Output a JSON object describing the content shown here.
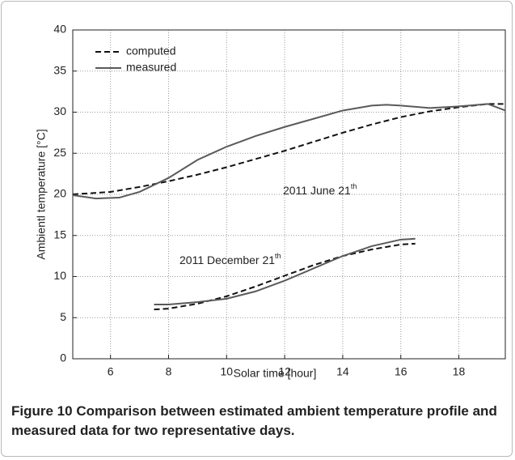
{
  "chart_data": {
    "type": "line",
    "x_label": "Solar time [hour]",
    "y_label": "Ambientl temperature  [°C]",
    "xlim": [
      4.7,
      19.6
    ],
    "xticks": [
      6,
      8,
      10,
      12,
      14,
      16,
      18
    ],
    "ylim": [
      0,
      40
    ],
    "yticks": [
      0,
      5,
      10,
      15,
      20,
      25,
      30,
      35,
      40
    ],
    "grid": true,
    "legend": "upper left",
    "series": [
      {
        "name": "computed",
        "color": "#111111",
        "dashed": true,
        "x": [
          4.7,
          6,
          7,
          8,
          9,
          10,
          11,
          12,
          13,
          14,
          15,
          16,
          17,
          18,
          19,
          19.6
        ],
        "values": [
          20.0,
          20.3,
          20.9,
          21.6,
          22.4,
          23.3,
          24.3,
          25.3,
          26.4,
          27.5,
          28.5,
          29.4,
          30.1,
          30.6,
          31.0,
          31.0
        ]
      },
      {
        "name": "measured",
        "color": "#5a5a5a",
        "dashed": false,
        "x": [
          4.7,
          5.5,
          6.3,
          7,
          8,
          9,
          10,
          11,
          12,
          13,
          14,
          15,
          15.5,
          16,
          17,
          18,
          19,
          19.6
        ],
        "values": [
          19.9,
          19.5,
          19.6,
          20.3,
          22.0,
          24.2,
          25.8,
          27.1,
          28.2,
          29.2,
          30.2,
          30.8,
          30.9,
          30.8,
          30.5,
          30.7,
          31.0,
          30.2
        ]
      },
      {
        "color": "#111111",
        "dashed": true,
        "x": [
          7.5,
          8,
          9,
          10,
          11,
          12,
          13,
          14,
          15,
          16,
          16.5
        ],
        "values": [
          6.0,
          6.1,
          6.7,
          7.6,
          8.8,
          10.1,
          11.4,
          12.5,
          13.3,
          13.9,
          14.0
        ]
      },
      {
        "color": "#5a5a5a",
        "dashed": false,
        "x": [
          7.5,
          8,
          9,
          10,
          11,
          12,
          13,
          14,
          15,
          16,
          16.5
        ],
        "values": [
          6.6,
          6.6,
          6.9,
          7.3,
          8.2,
          9.5,
          11.0,
          12.5,
          13.7,
          14.5,
          14.6
        ]
      }
    ],
    "annotations": [
      {
        "text": "2011 June 21",
        "sup": "th"
      },
      {
        "text": "2011 December 21",
        "sup": "th"
      }
    ]
  },
  "caption": {
    "label": "Figure 10",
    "text": "Comparison between estimated ambient temperature profile and measured data for two representative days."
  }
}
